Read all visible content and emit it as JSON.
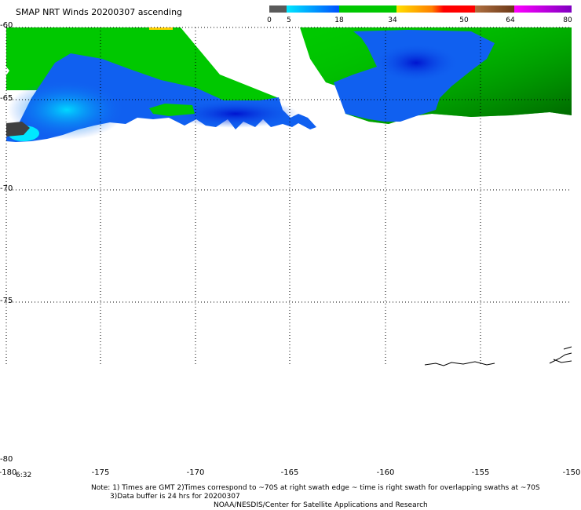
{
  "title": "SMAP NRT Winds 20200307 ascending",
  "colorbar": {
    "labels": [
      "0",
      "5",
      "18",
      "34",
      "50",
      "64",
      "80"
    ]
  },
  "latitude_labels": [
    "-60",
    "-65",
    "-70",
    "-75",
    "-80"
  ],
  "longitude_labels": [
    "-180",
    "-175",
    "-170",
    "-165",
    "-160",
    "-155",
    "-150"
  ],
  "swath_time": "6:32",
  "notes": {
    "line1": "Note: 1) Times are GMT 2)Times correspond to ~70S at right swath edge ~ time is right swath for overlapping swaths at ~70S",
    "line2": "3)Data buffer is 24 hrs for 20200307",
    "line3": "NOAA/NESDIS/Center for Satellite Applications and Research"
  }
}
